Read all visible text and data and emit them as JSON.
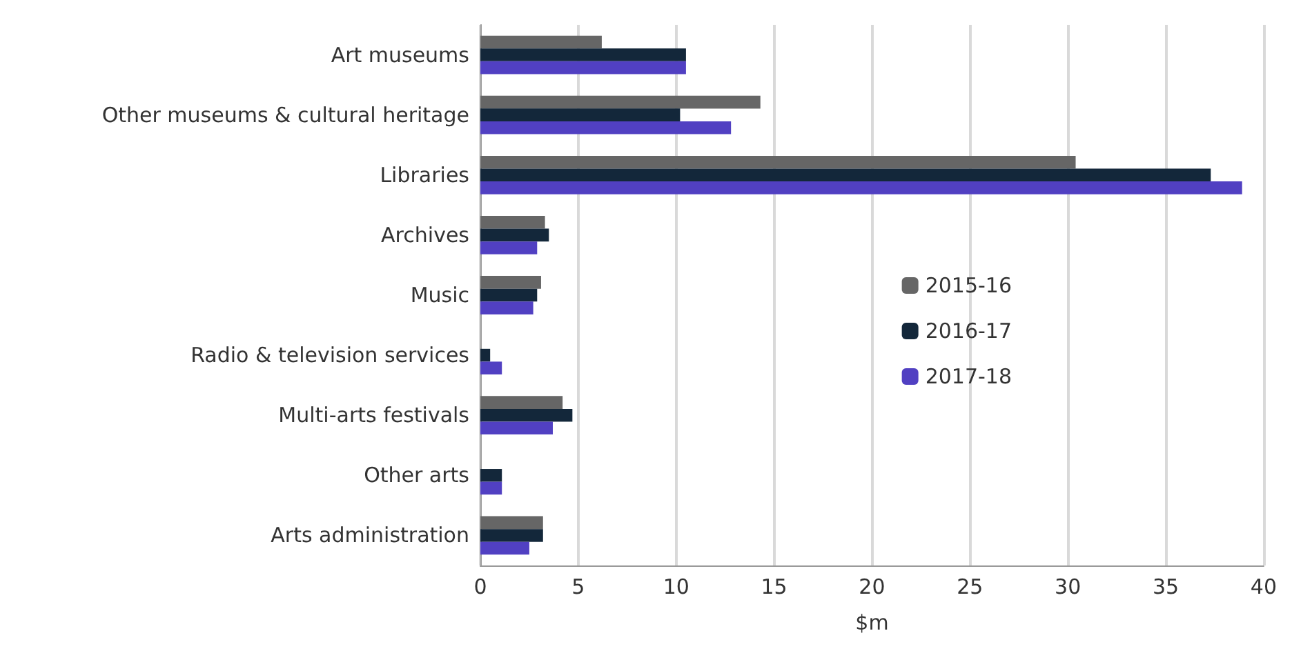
{
  "chart_data": {
    "type": "bar",
    "orientation": "horizontal",
    "xlabel": "$m",
    "categories": [
      "Art museums",
      "Other museums & cultural heritage",
      "Libraries",
      "Archives",
      "Music",
      "Radio & television services",
      "Multi-arts festivals",
      "Other arts",
      "Arts administration"
    ],
    "series": [
      {
        "name": "2015-16",
        "color": "#666666",
        "values": [
          6.2,
          14.3,
          30.4,
          3.3,
          3.1,
          0,
          4.2,
          0,
          3.2
        ]
      },
      {
        "name": "2016-17",
        "color": "#13273a",
        "values": [
          10.5,
          10.2,
          37.3,
          3.5,
          2.9,
          0.5,
          4.7,
          1.1,
          3.2
        ]
      },
      {
        "name": "2017-18",
        "color": "#5140c2",
        "values": [
          10.5,
          12.8,
          38.9,
          2.9,
          2.7,
          1.1,
          3.7,
          1.1,
          2.5
        ]
      }
    ],
    "xlim": [
      0,
      40
    ],
    "xticks": [
      0,
      5,
      10,
      15,
      20,
      25,
      30,
      35,
      40
    ],
    "grid": "x",
    "legend": "right"
  }
}
